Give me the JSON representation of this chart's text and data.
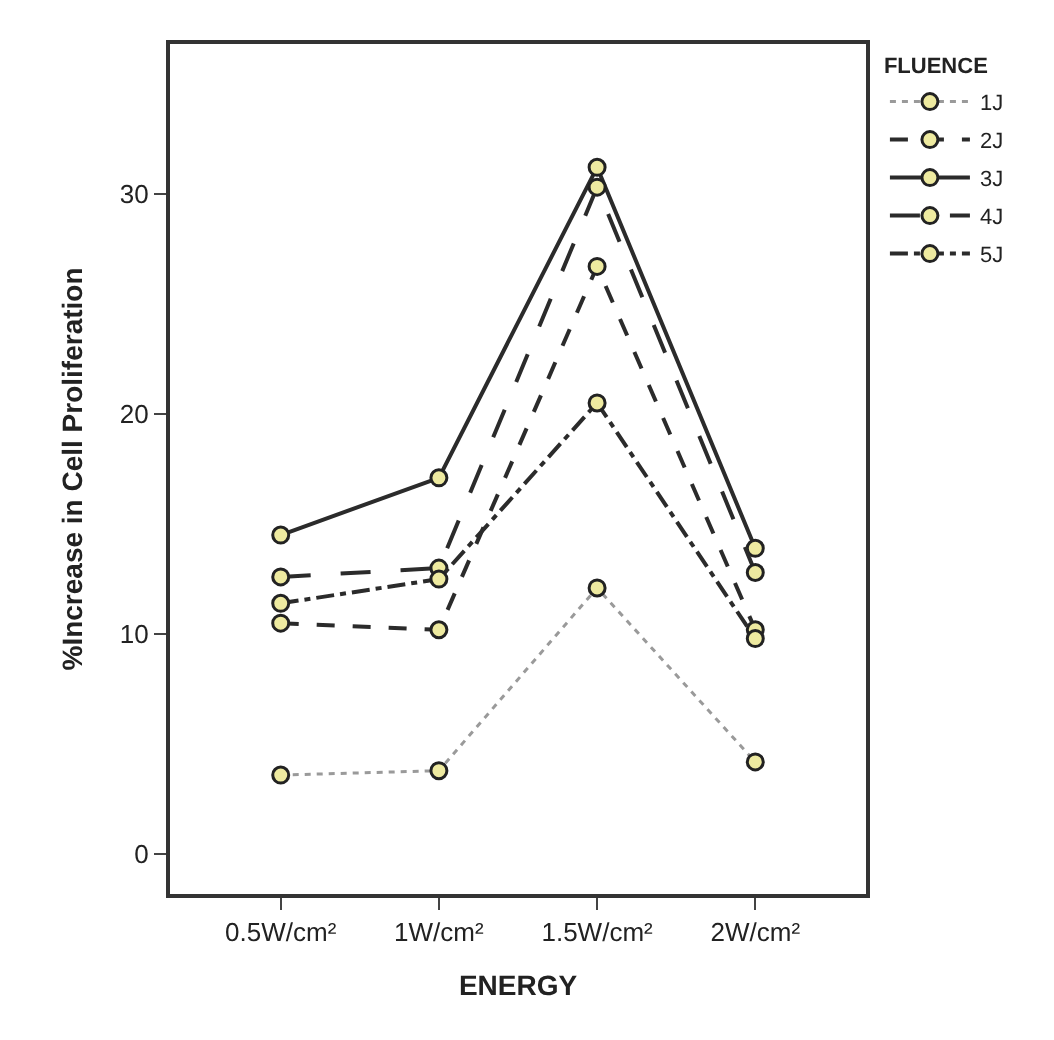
{
  "chart_data": {
    "type": "line",
    "xlabel": "ENERGY",
    "ylabel": "%Increase in Cell Proliferation",
    "legend_title": "FLUENCE",
    "categories": [
      "0.5W/cm²",
      "1W/cm²",
      "1.5W/cm²",
      "2W/cm²"
    ],
    "series": [
      {
        "name": "1J",
        "color": "#9a9a9a",
        "line_style": "dotted",
        "values": [
          3.6,
          3.8,
          12.1,
          4.2
        ]
      },
      {
        "name": "2J",
        "color": "#2b2b2b",
        "line_style": "dashed",
        "values": [
          10.5,
          10.2,
          26.7,
          10.2
        ]
      },
      {
        "name": "3J",
        "color": "#2b2b2b",
        "line_style": "solid",
        "values": [
          14.5,
          17.1,
          31.2,
          13.9
        ]
      },
      {
        "name": "4J",
        "color": "#2b2b2b",
        "line_style": "longdash",
        "values": [
          12.6,
          13.0,
          30.3,
          12.8
        ]
      },
      {
        "name": "5J",
        "color": "#2b2b2b",
        "line_style": "dashdot",
        "values": [
          11.4,
          12.5,
          20.5,
          9.8
        ]
      }
    ],
    "marker": "circle",
    "ylim": [
      -1.8,
      36.8
    ],
    "yticks": [
      0,
      10,
      20,
      30
    ],
    "legend": "top right"
  }
}
